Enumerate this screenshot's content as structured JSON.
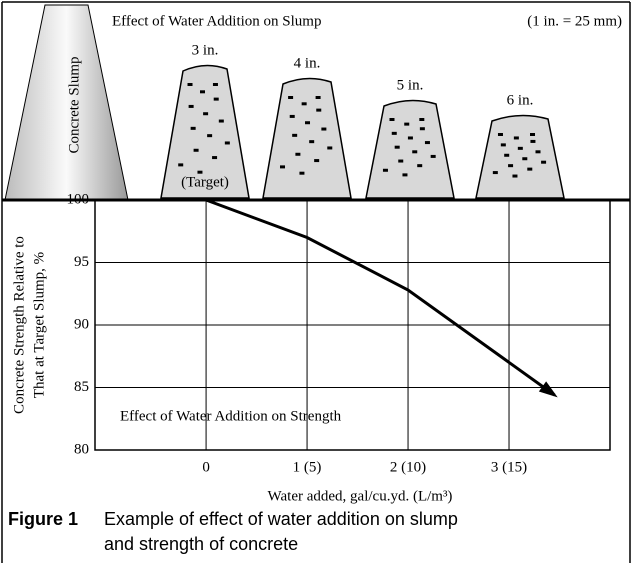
{
  "chart_data": {
    "type": "line",
    "annotation": "Effect of Water Addition on Strength",
    "x_label": "Water added, gal/cu.yd. (L/m³)",
    "y_label": [
      "Concrete Strength Relative to",
      "That at Target Slump, %"
    ],
    "x": [
      0,
      1,
      2,
      3.45
    ],
    "values": [
      100,
      97,
      92.8,
      84.4
    ],
    "color": "#000000",
    "xlim": [
      -1.1,
      4
    ],
    "ylim": [
      80,
      100
    ],
    "xticks": [
      {
        "value": 0,
        "label": "0"
      },
      {
        "value": 1,
        "label": "1 (5)"
      },
      {
        "value": 2,
        "label": "2 (10)"
      },
      {
        "value": 3,
        "label": "3 (15)"
      }
    ],
    "yticks": [
      80,
      85,
      90,
      95,
      100
    ],
    "grid": true
  },
  "slump_panel": {
    "title": "Effect of Water Addition on Slump",
    "note": "(1 in. = 25 mm)",
    "cone_label": "Concrete Slump",
    "slumps": [
      "3 in.",
      "4 in.",
      "5 in.",
      "6 in."
    ],
    "target": "(Target)"
  },
  "caption": {
    "figure": "Figure 1",
    "lines": [
      "Example of effect of water addition on slump",
      "and strength of concrete"
    ]
  }
}
